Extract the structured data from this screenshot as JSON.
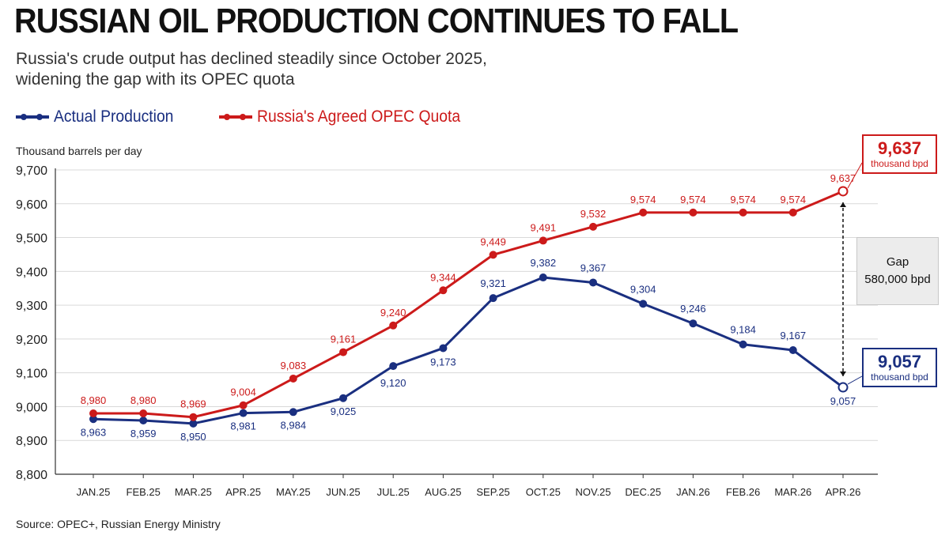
{
  "header": {
    "title": "RUSSIAN OIL PRODUCTION CONTINUES TO FALL",
    "subtitle_line1": "Russia's crude output has declined steadily since October 2025,",
    "subtitle_line2": "widening the gap with its OPEC quota"
  },
  "source": "Source: OPEC+, Russian Energy Ministry",
  "colors": {
    "actual": "#1a2f80",
    "quota": "#cc1a1a",
    "grid": "#d9d9d9",
    "axis": "#333333"
  },
  "chart_data": {
    "type": "line",
    "title": "RUSSIAN OIL PRODUCTION CONTINUES TO FALL",
    "ylabel": "Thousand barrels per day",
    "xlabel": "",
    "ylim": [
      8800,
      9700
    ],
    "yticks": [
      8800,
      8900,
      9000,
      9100,
      9200,
      9300,
      9400,
      9500,
      9600,
      9700
    ],
    "ytick_labels": [
      "8,800",
      "8,900",
      "9,000",
      "9,100",
      "9,200",
      "9,300",
      "9,400",
      "9,500",
      "9,600",
      "9,700"
    ],
    "grid": "horizontal",
    "legend": "top-left",
    "categories": [
      "JAN.25",
      "FEB.25",
      "MAR.25",
      "APR.25",
      "MAY.25",
      "JUN.25",
      "JUL.25",
      "AUG.25",
      "SEP.25",
      "OCT.25",
      "NOV.25",
      "DEC.25",
      "JAN.26",
      "FEB.26",
      "MAR.26",
      "APR.26"
    ],
    "series": [
      {
        "name": "Actual Production",
        "color": "#1a2f80",
        "values": [
          8963,
          8959,
          8950,
          8981,
          8984,
          9025,
          9120,
          9173,
          9321,
          9382,
          9367,
          9304,
          9246,
          9184,
          9167,
          9057
        ],
        "labels": [
          "8,963",
          "8,959",
          "8,950",
          "8,981",
          "8,984",
          "9,025",
          "9,120",
          "9,173",
          "9,321",
          "9,382",
          "9,367",
          "9,304",
          "9,246",
          "9,184",
          "9,167",
          "9,057"
        ]
      },
      {
        "name": "Russia's Agreed OPEC Quota",
        "color": "#cc1a1a",
        "values": [
          8980,
          8980,
          8969,
          9004,
          9083,
          9161,
          9240,
          9344,
          9449,
          9491,
          9532,
          9574,
          9574,
          9574,
          9574,
          9637
        ],
        "labels": [
          "8,980",
          "8,980",
          "8,969",
          "9,004",
          "9,083",
          "9,161",
          "9,240",
          "9,344",
          "9,449",
          "9,491",
          "9,532",
          "9,574",
          "9,574",
          "9,574",
          "9,574",
          "9,637"
        ]
      }
    ],
    "annotations": {
      "quota_callout_value": "9,637",
      "quota_callout_unit": "thousand bpd",
      "actual_callout_value": "9,057",
      "actual_callout_unit": "thousand bpd",
      "gap_label": "Gap",
      "gap_value": "580,000 bpd"
    }
  }
}
